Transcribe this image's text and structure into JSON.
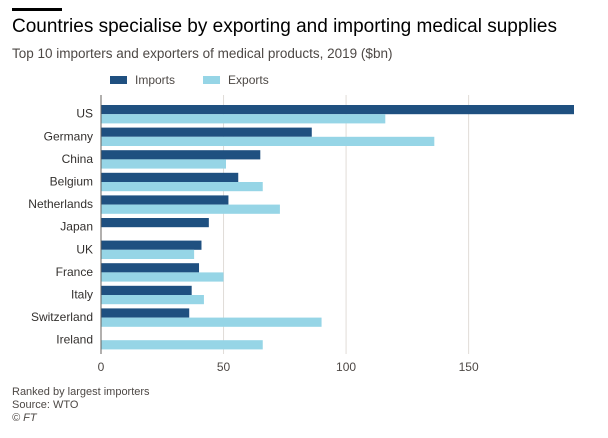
{
  "header": {
    "title": "Countries specialise by exporting and importing medical supplies",
    "subtitle": "Top 10 importers and exporters of medical products, 2019 ($bn)"
  },
  "footer": {
    "note": "Ranked by largest importers",
    "source": "Source: WTO",
    "credit": "© FT"
  },
  "colors": {
    "imports": "#1f5080",
    "exports": "#96d5e6",
    "grid": "#e0dcd8"
  },
  "chart_data": {
    "type": "bar",
    "orientation": "horizontal",
    "categories": [
      "US",
      "Germany",
      "China",
      "Belgium",
      "Netherlands",
      "Japan",
      "UK",
      "France",
      "Italy",
      "Switzerland",
      "Ireland"
    ],
    "series": [
      {
        "name": "Imports",
        "values": [
          193,
          86,
          65,
          56,
          52,
          44,
          41,
          40,
          37,
          36,
          0
        ]
      },
      {
        "name": "Exports",
        "values": [
          116,
          136,
          51,
          66,
          73,
          0,
          38,
          50,
          42,
          90,
          66
        ]
      }
    ],
    "xticks": [
      0,
      50,
      100,
      150
    ],
    "xlim": [
      0,
      193
    ],
    "grid": true,
    "legend_position": "top-left"
  }
}
